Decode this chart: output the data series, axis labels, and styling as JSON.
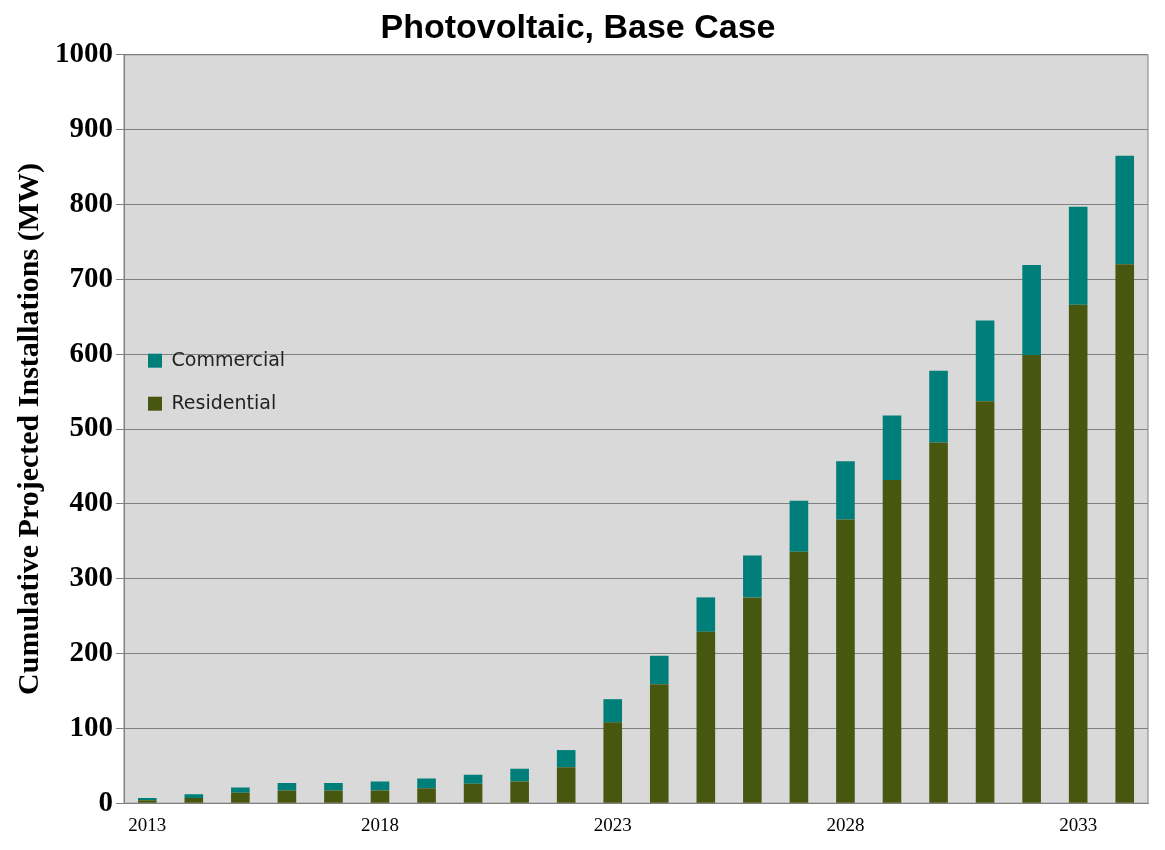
{
  "chart_data": {
    "type": "bar",
    "title": "Photovoltaic, Base Case",
    "ylabel": "Cumulative Projected Installations (MW)",
    "categories": [
      "2013",
      null,
      null,
      null,
      null,
      "2018",
      null,
      null,
      null,
      null,
      "2023",
      null,
      null,
      null,
      null,
      "2028",
      null,
      null,
      null,
      null,
      "2033",
      null
    ],
    "series": [
      {
        "name": "Residential",
        "color": "#475710",
        "values": [
          4,
          7,
          14,
          17,
          17,
          17,
          20,
          26,
          29,
          48,
          108,
          159,
          229,
          275,
          336,
          379,
          432,
          482,
          537,
          599,
          666,
          720
        ]
      },
      {
        "name": "Commercial",
        "color": "#007f7a",
        "values": [
          3,
          5,
          7,
          10,
          10,
          12,
          13,
          12,
          17,
          23,
          31,
          38,
          46,
          56,
          68,
          78,
          86,
          96,
          108,
          120,
          131,
          145
        ]
      }
    ],
    "stacked": true,
    "ylim": [
      0,
      1000
    ],
    "yticks": [
      0,
      100,
      200,
      300,
      400,
      500,
      600,
      700,
      800,
      900,
      1000
    ],
    "grid": "y",
    "legend": "top"
  }
}
